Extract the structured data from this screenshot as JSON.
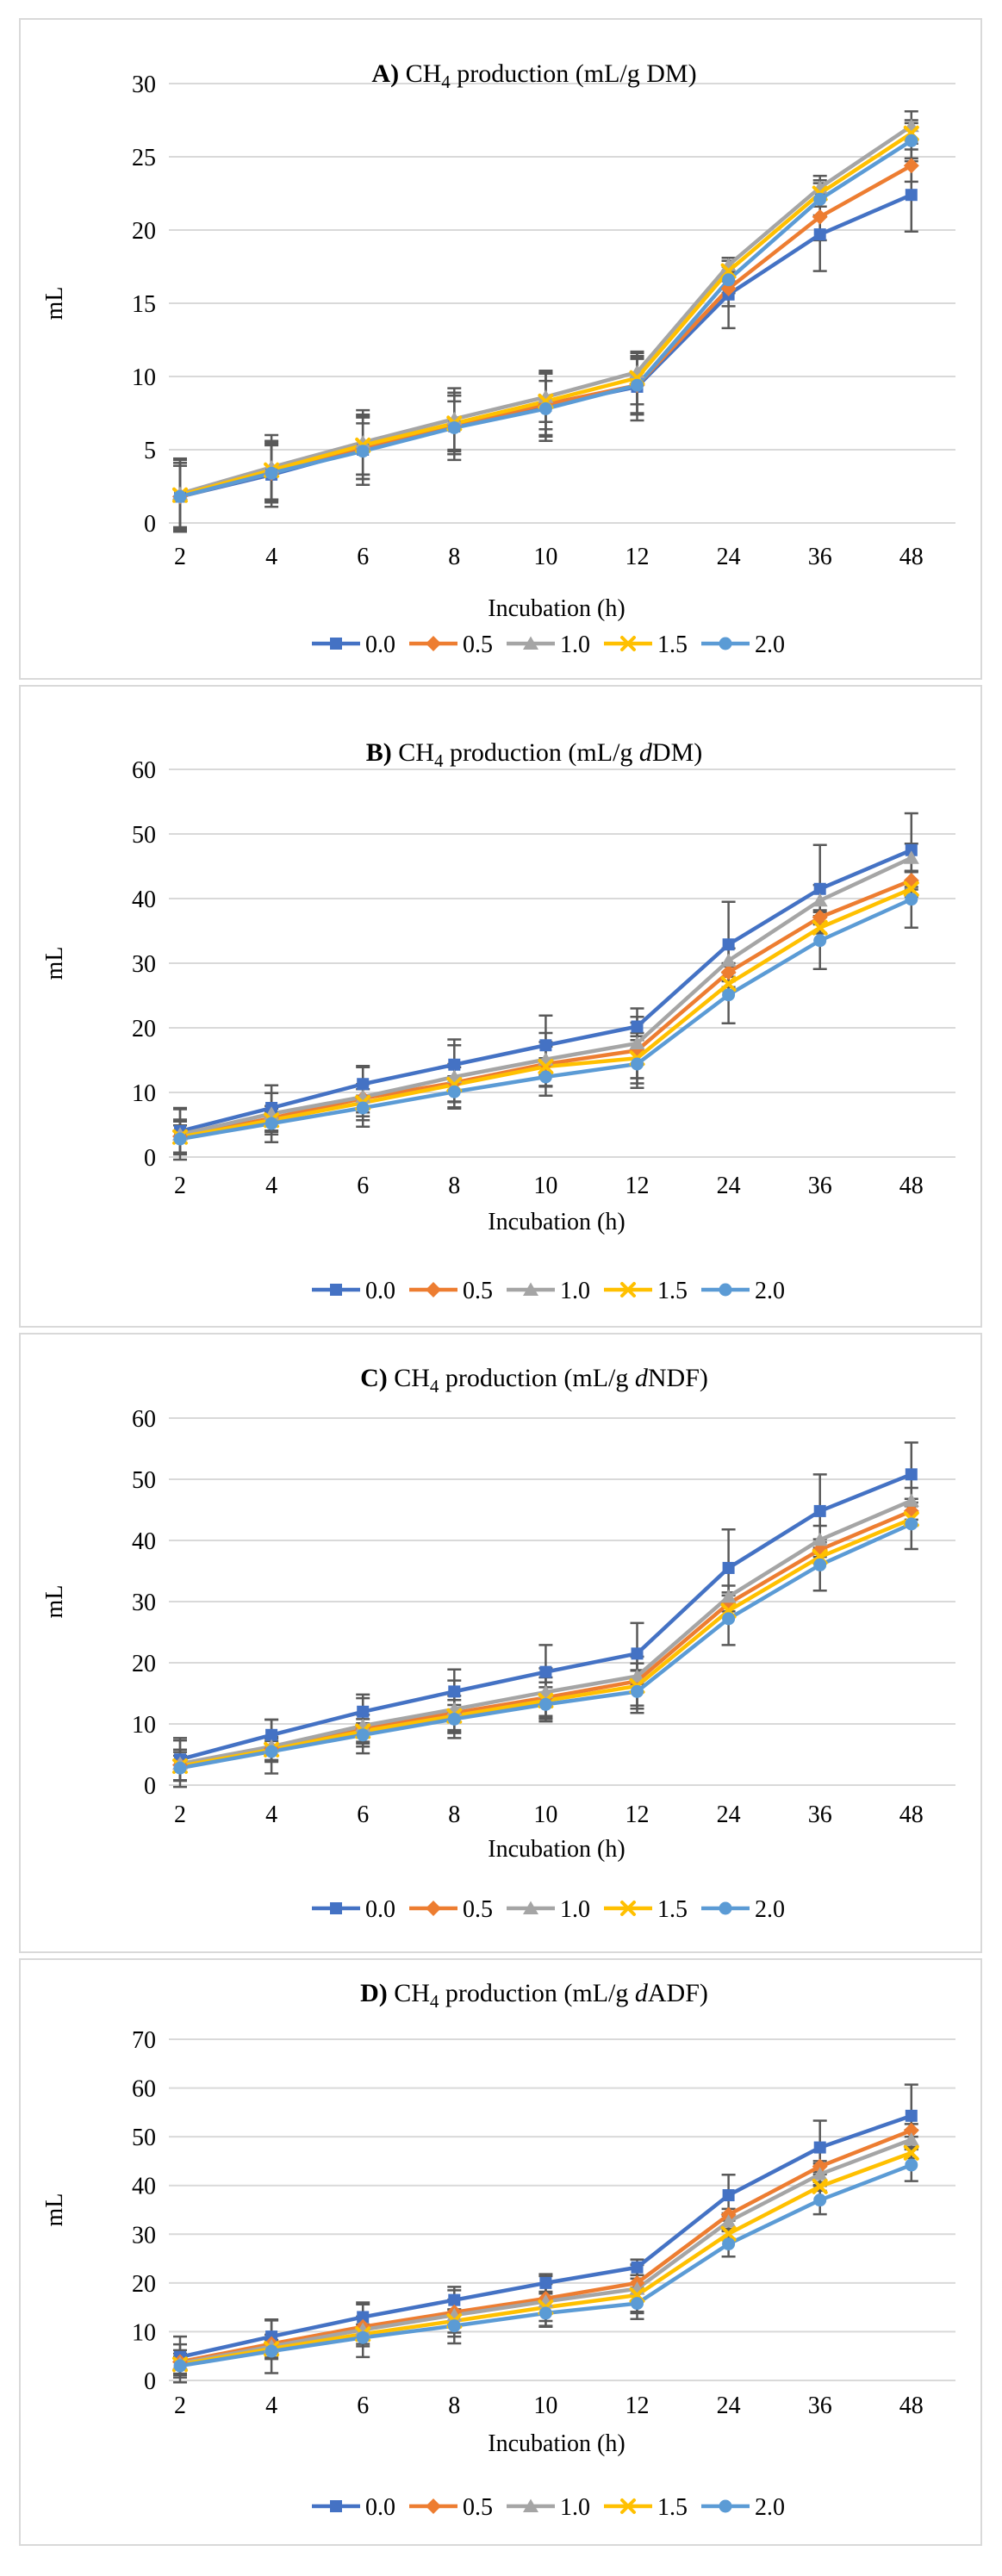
{
  "figure": {
    "background": "#ffffff",
    "panel_border_color": "#d9d9d9",
    "gridline_color": "#d9d9d9",
    "error_bar_color": "#595959",
    "text_color": "#000000"
  },
  "chart_data": [
    {
      "type": "line",
      "panel": "A",
      "title": "A) CH4 production (mL/g DM)",
      "title_parts": [
        {
          "t": "A) ",
          "b": 1
        },
        {
          "t": "CH"
        },
        {
          "t": "4",
          "sub": 1
        },
        {
          "t": " production (mL/g DM)"
        }
      ],
      "ylabel": "mL",
      "xlabel": "Incubation (h)",
      "categories": [
        "2",
        "4",
        "6",
        "8",
        "10",
        "12",
        "24",
        "36",
        "48"
      ],
      "ylim": [
        0,
        30
      ],
      "ystep": 5,
      "grid": true,
      "legend_position": "bottom",
      "series": [
        {
          "name": "0.0",
          "color": "#4472C4",
          "marker": "square",
          "values": [
            1.8,
            3.3,
            5.0,
            6.6,
            8.0,
            9.3,
            15.6,
            19.7,
            22.4
          ],
          "errors": [
            2.5,
            2.2,
            2.4,
            2.3,
            2.4,
            2.3,
            2.3,
            2.5,
            2.5
          ]
        },
        {
          "name": "0.5",
          "color": "#ED7D31",
          "marker": "diamond",
          "values": [
            1.8,
            3.4,
            5.1,
            6.7,
            8.1,
            9.4,
            16.0,
            20.9,
            24.4
          ],
          "errors": [
            2.3,
            2.0,
            2.1,
            2.0,
            2.1,
            2.0,
            1.2,
            1.6,
            1.1
          ]
        },
        {
          "name": "1.0",
          "color": "#A5A5A5",
          "marker": "triangle",
          "values": [
            2.0,
            3.8,
            5.5,
            7.1,
            8.6,
            10.3,
            17.6,
            22.9,
            27.1
          ],
          "errors": [
            2.4,
            2.2,
            2.2,
            2.1,
            1.7,
            0.9,
            0.5,
            0.8,
            1.0
          ]
        },
        {
          "name": "1.5",
          "color": "#FFC000",
          "marker": "x",
          "values": [
            1.9,
            3.6,
            5.3,
            6.8,
            8.3,
            9.9,
            17.2,
            22.5,
            26.6
          ],
          "errors": [
            2.2,
            2.0,
            2.0,
            1.9,
            1.9,
            1.8,
            0.7,
            0.9,
            0.7
          ]
        },
        {
          "name": "2.0",
          "color": "#5B9BD5",
          "marker": "circle",
          "values": [
            1.8,
            3.4,
            4.9,
            6.5,
            7.8,
            9.4,
            16.6,
            22.1,
            26.1
          ],
          "errors": [
            2.1,
            1.9,
            1.9,
            1.8,
            1.9,
            1.9,
            0.9,
            1.1,
            1.4
          ]
        }
      ]
    },
    {
      "type": "line",
      "panel": "B",
      "title": "B) CH4 production (mL/g dDM)",
      "title_parts": [
        {
          "t": "B) ",
          "b": 1
        },
        {
          "t": "CH"
        },
        {
          "t": "4",
          "sub": 1
        },
        {
          "t": " production (mL/g "
        },
        {
          "t": "d",
          "i": 1
        },
        {
          "t": "DM)"
        }
      ],
      "ylabel": "mL",
      "xlabel": "Incubation (h)",
      "categories": [
        "2",
        "4",
        "6",
        "8",
        "10",
        "12",
        "24",
        "36",
        "48"
      ],
      "ylim": [
        0,
        60
      ],
      "ystep": 10,
      "grid": true,
      "legend_position": "bottom",
      "series": [
        {
          "name": "0.0",
          "color": "#4472C4",
          "marker": "square",
          "values": [
            4.0,
            7.6,
            11.3,
            14.3,
            17.3,
            20.2,
            32.9,
            41.5,
            47.5
          ],
          "errors": [
            3.6,
            2.3,
            2.8,
            3.9,
            4.6,
            1.5,
            6.6,
            6.8,
            5.7
          ]
        },
        {
          "name": "0.5",
          "color": "#ED7D31",
          "marker": "diamond",
          "values": [
            3.2,
            6.0,
            9.1,
            11.5,
            14.4,
            16.5,
            28.6,
            37.1,
            42.8
          ],
          "errors": [
            2.6,
            1.9,
            2.2,
            2.9,
            3.4,
            4.3,
            1.4,
            1.1,
            1.4
          ]
        },
        {
          "name": "1.0",
          "color": "#A5A5A5",
          "marker": "triangle",
          "values": [
            3.5,
            6.7,
            9.3,
            12.4,
            15.1,
            17.6,
            30.4,
            39.7,
            46.3
          ],
          "errors": [
            3.9,
            4.4,
            4.6,
            4.9,
            4.1,
            5.4,
            1.9,
            2.4,
            2.2
          ]
        },
        {
          "name": "1.5",
          "color": "#FFC000",
          "marker": "x",
          "values": [
            3.1,
            5.7,
            8.4,
            11.2,
            14.0,
            15.3,
            26.8,
            35.5,
            41.5
          ],
          "errors": [
            2.4,
            1.8,
            2.1,
            2.7,
            3.1,
            3.9,
            1.1,
            0.9,
            1.2
          ]
        },
        {
          "name": "2.0",
          "color": "#5B9BD5",
          "marker": "circle",
          "values": [
            2.8,
            5.2,
            7.6,
            10.1,
            12.4,
            14.4,
            25.1,
            33.5,
            39.9
          ],
          "errors": [
            2.1,
            1.7,
            1.9,
            2.4,
            2.9,
            3.7,
            4.4,
            4.4,
            4.4
          ]
        }
      ]
    },
    {
      "type": "line",
      "panel": "C",
      "title": "C) CH4 production (mL/g dNDF)",
      "title_parts": [
        {
          "t": "C) ",
          "b": 1
        },
        {
          "t": "CH"
        },
        {
          "t": "4",
          "sub": 1
        },
        {
          "t": " production (mL/g "
        },
        {
          "t": "d",
          "i": 1
        },
        {
          "t": "NDF)"
        }
      ],
      "ylabel": "mL",
      "xlabel": "Incubation (h)",
      "categories": [
        "2",
        "4",
        "6",
        "8",
        "10",
        "12",
        "24",
        "36",
        "48"
      ],
      "ylim": [
        0,
        60
      ],
      "ystep": 10,
      "grid": true,
      "legend_position": "bottom",
      "series": [
        {
          "name": "0.0",
          "color": "#4472C4",
          "marker": "square",
          "values": [
            4.2,
            8.2,
            12.0,
            15.3,
            18.5,
            21.5,
            35.5,
            44.8,
            50.8
          ],
          "errors": [
            3.5,
            2.5,
            2.8,
            3.6,
            4.4,
            5.0,
            6.3,
            6.0,
            5.2
          ]
        },
        {
          "name": "0.5",
          "color": "#ED7D31",
          "marker": "diamond",
          "values": [
            3.3,
            6.0,
            9.3,
            11.8,
            14.3,
            17.0,
            29.7,
            38.5,
            44.8
          ],
          "errors": [
            2.5,
            1.9,
            2.2,
            2.8,
            3.3,
            4.0,
            1.3,
            1.2,
            1.4
          ]
        },
        {
          "name": "1.0",
          "color": "#A5A5A5",
          "marker": "triangle",
          "values": [
            3.5,
            6.3,
            9.7,
            12.4,
            15.2,
            17.8,
            30.8,
            40.1,
            46.5
          ],
          "errors": [
            3.8,
            4.4,
            4.5,
            4.7,
            3.9,
            0.9,
            1.8,
            2.3,
            2.1
          ]
        },
        {
          "name": "1.5",
          "color": "#FFC000",
          "marker": "x",
          "values": [
            3.1,
            5.8,
            8.8,
            11.3,
            13.8,
            16.2,
            28.5,
            37.3,
            43.5
          ],
          "errors": [
            2.3,
            1.8,
            2.0,
            2.6,
            3.0,
            3.7,
            1.0,
            0.9,
            1.1
          ]
        },
        {
          "name": "2.0",
          "color": "#5B9BD5",
          "marker": "circle",
          "values": [
            2.8,
            5.5,
            8.2,
            10.8,
            13.2,
            15.3,
            27.2,
            36.0,
            42.7
          ],
          "errors": [
            2.0,
            1.7,
            1.9,
            2.3,
            2.8,
            3.5,
            4.3,
            4.2,
            4.1
          ]
        }
      ]
    },
    {
      "type": "line",
      "panel": "D",
      "title": "D) CH4 production (mL/g dADF)",
      "title_parts": [
        {
          "t": "D) ",
          "b": 1
        },
        {
          "t": "CH"
        },
        {
          "t": "4",
          "sub": 1
        },
        {
          "t": " production (mL/g "
        },
        {
          "t": "d",
          "i": 1
        },
        {
          "t": "ADF)"
        }
      ],
      "ylabel": "mL",
      "xlabel": "Incubation (h)",
      "categories": [
        "2",
        "4",
        "6",
        "8",
        "10",
        "12",
        "24",
        "36",
        "48"
      ],
      "ylim": [
        0,
        70
      ],
      "ystep": 10,
      "grid": true,
      "legend_position": "bottom",
      "series": [
        {
          "name": "0.0",
          "color": "#4472C4",
          "marker": "square",
          "values": [
            4.8,
            9.0,
            13.0,
            16.5,
            20.0,
            23.2,
            38.0,
            47.8,
            54.3
          ],
          "errors": [
            4.2,
            3.3,
            2.6,
            2.0,
            1.8,
            1.6,
            4.2,
            5.5,
            6.4
          ]
        },
        {
          "name": "0.5",
          "color": "#ED7D31",
          "marker": "diamond",
          "values": [
            3.8,
            7.5,
            11.0,
            14.0,
            16.8,
            20.0,
            34.0,
            43.9,
            51.3
          ],
          "errors": [
            2.4,
            1.9,
            2.1,
            2.6,
            3.0,
            3.7,
            1.2,
            1.1,
            1.3
          ]
        },
        {
          "name": "1.0",
          "color": "#A5A5A5",
          "marker": "triangle",
          "values": [
            3.5,
            7.0,
            10.4,
            13.4,
            16.2,
            18.8,
            32.6,
            42.3,
            49.4
          ],
          "errors": [
            3.9,
            5.5,
            5.6,
            5.8,
            5.2,
            5.0,
            1.7,
            2.2,
            2.0
          ]
        },
        {
          "name": "1.5",
          "color": "#FFC000",
          "marker": "x",
          "values": [
            3.3,
            6.5,
            9.5,
            12.2,
            15.0,
            17.5,
            30.1,
            39.8,
            46.7
          ],
          "errors": [
            2.2,
            1.8,
            2.0,
            2.4,
            2.8,
            3.4,
            1.0,
            0.9,
            1.1
          ]
        },
        {
          "name": "2.0",
          "color": "#5B9BD5",
          "marker": "circle",
          "values": [
            3.0,
            6.0,
            8.8,
            11.2,
            13.8,
            15.8,
            28.0,
            37.0,
            44.2
          ],
          "errors": [
            1.9,
            1.6,
            1.8,
            2.2,
            2.6,
            3.2,
            2.6,
            2.9,
            3.3
          ]
        }
      ]
    }
  ]
}
